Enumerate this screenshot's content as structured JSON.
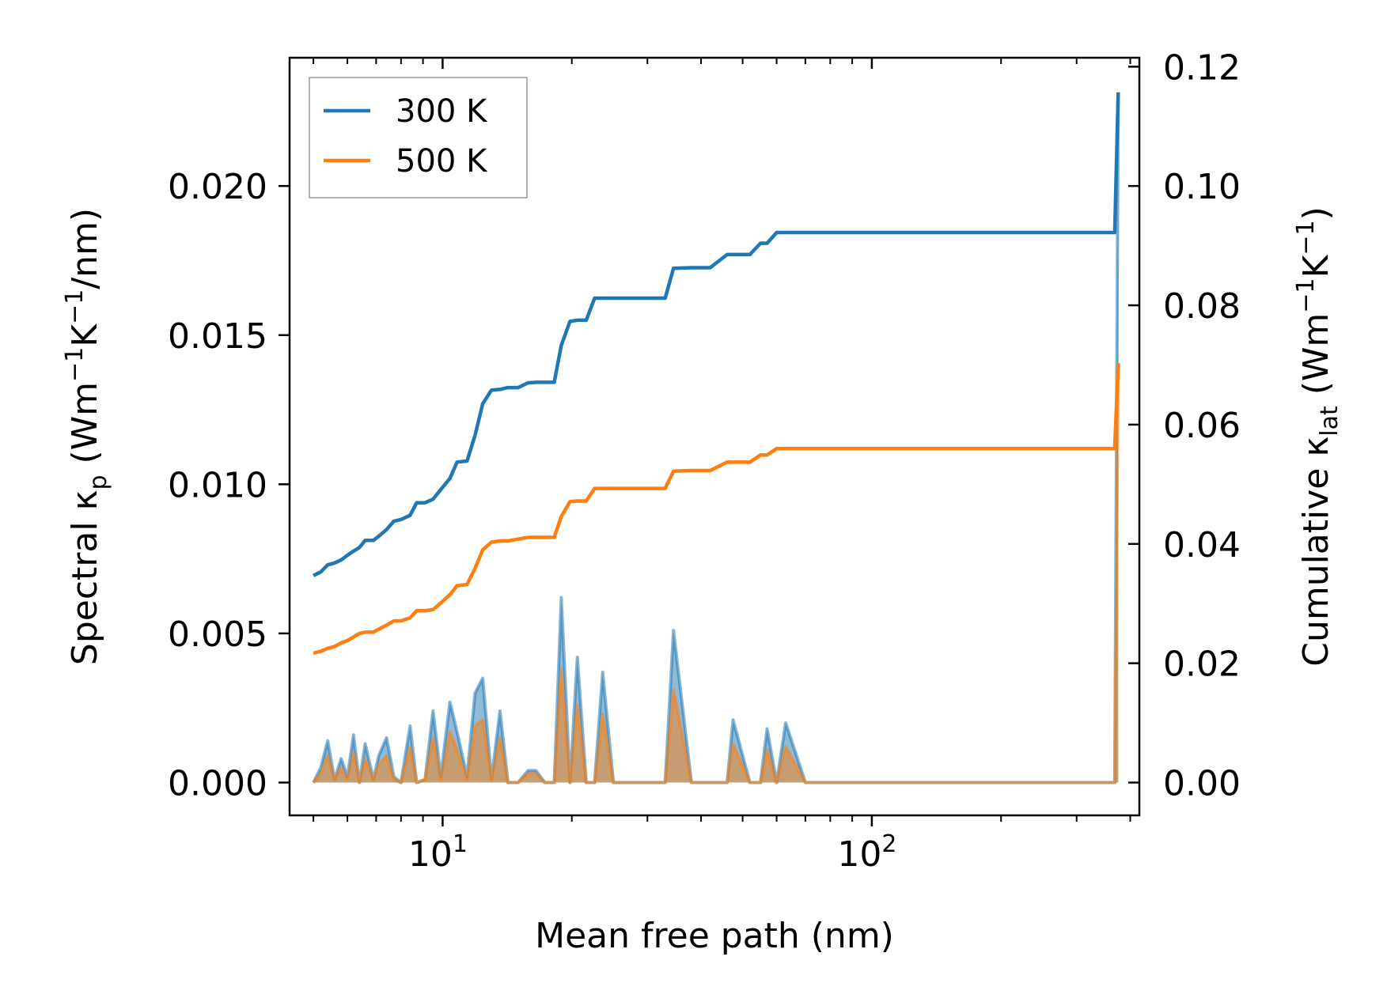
{
  "chart_data": {
    "type": "line",
    "xscale": "log",
    "xlabel": "Mean free path (nm)",
    "ylabel_left": {
      "prefix": "Spectral κ",
      "sub": "p",
      "mid": " (Wm",
      "sup1": "−1",
      "mid2": "K",
      "sup2": "−1",
      "suffix": "/nm)"
    },
    "ylabel_right": {
      "prefix": "Cumulative κ",
      "sub": "lat",
      "mid": " (Wm",
      "sup1": "−1",
      "mid2": "K",
      "sup2": "−1",
      "suffix": ")"
    },
    "xlim": [
      4.4,
      420
    ],
    "ylim_left": [
      -0.0011,
      0.0243
    ],
    "ylim_right": [
      -0.0055,
      0.1215
    ],
    "xticks": [
      {
        "base": "10",
        "exp": "1",
        "value": 10
      },
      {
        "base": "10",
        "exp": "2",
        "value": 100
      }
    ],
    "yticks_left": [
      "0.000",
      "0.005",
      "0.010",
      "0.015",
      "0.020"
    ],
    "yticks_left_values": [
      0,
      0.005,
      0.01,
      0.015,
      0.02
    ],
    "yticks_right": [
      "0.00",
      "0.02",
      "0.04",
      "0.06",
      "0.08",
      "0.10",
      "0.12"
    ],
    "yticks_right_values": [
      0,
      0.02,
      0.04,
      0.06,
      0.08,
      0.1,
      0.12
    ],
    "legend": {
      "position": "top-left",
      "entries": [
        "300 K",
        "500 K"
      ]
    },
    "colors": {
      "s300": "#1f77b4",
      "s500": "#ff7f0e"
    },
    "cumulative": [
      {
        "name": "300 K",
        "x": [
          5.0,
          5.2,
          5.4,
          5.6,
          5.8,
          6.0,
          6.2,
          6.4,
          6.6,
          6.9,
          7.1,
          7.4,
          7.7,
          8.0,
          8.4,
          8.7,
          9.1,
          9.5,
          9.9,
          10.4,
          10.8,
          11.4,
          11.9,
          12.4,
          13.0,
          13.6,
          14.2,
          15.0,
          15.8,
          16.5,
          17.3,
          18.2,
          18.9,
          19.8,
          20.6,
          21.6,
          22.6,
          23.6,
          25.0,
          27.0,
          29.0,
          31.0,
          33.0,
          34.5,
          38.0,
          42.0,
          46.0,
          47.5,
          52.0,
          55.0,
          57.0,
          60.0,
          63.0,
          70.0,
          100.0,
          200.0,
          368.0,
          375.0
        ],
        "y": [
          0.0347,
          0.0353,
          0.0365,
          0.0368,
          0.0373,
          0.0381,
          0.0388,
          0.0394,
          0.0406,
          0.0406,
          0.0413,
          0.0424,
          0.0438,
          0.0441,
          0.0448,
          0.0469,
          0.0469,
          0.0475,
          0.0491,
          0.051,
          0.0537,
          0.0539,
          0.0582,
          0.0635,
          0.0658,
          0.0659,
          0.0662,
          0.0662,
          0.067,
          0.0671,
          0.0671,
          0.0671,
          0.0733,
          0.0773,
          0.0775,
          0.0775,
          0.0812,
          0.0812,
          0.0812,
          0.0812,
          0.0812,
          0.0812,
          0.0812,
          0.0862,
          0.0863,
          0.0863,
          0.0885,
          0.0885,
          0.0885,
          0.0904,
          0.0904,
          0.0922,
          0.0922,
          0.0922,
          0.0922,
          0.0922,
          0.0922,
          0.1157
        ]
      },
      {
        "name": "500 K",
        "x": [
          5.0,
          5.2,
          5.4,
          5.6,
          5.8,
          6.0,
          6.2,
          6.4,
          6.6,
          6.9,
          7.1,
          7.4,
          7.7,
          8.0,
          8.4,
          8.7,
          9.1,
          9.5,
          9.9,
          10.4,
          10.8,
          11.4,
          11.9,
          12.4,
          13.0,
          13.6,
          14.2,
          15.0,
          15.8,
          16.5,
          17.3,
          18.2,
          18.9,
          19.8,
          20.6,
          21.6,
          22.6,
          23.6,
          25.0,
          27.0,
          29.0,
          31.0,
          33.0,
          34.5,
          38.0,
          42.0,
          46.0,
          47.5,
          52.0,
          55.0,
          57.0,
          60.0,
          63.0,
          70.0,
          100.0,
          200.0,
          368.0,
          375.0
        ],
        "y": [
          0.0217,
          0.022,
          0.0225,
          0.0228,
          0.0234,
          0.0238,
          0.0244,
          0.025,
          0.0252,
          0.0252,
          0.0257,
          0.0264,
          0.0271,
          0.0271,
          0.0276,
          0.0288,
          0.0288,
          0.029,
          0.0301,
          0.0315,
          0.033,
          0.0332,
          0.0359,
          0.039,
          0.0403,
          0.0405,
          0.0405,
          0.0408,
          0.0411,
          0.0411,
          0.0411,
          0.0411,
          0.0446,
          0.0471,
          0.0472,
          0.0472,
          0.0493,
          0.0493,
          0.0493,
          0.0493,
          0.0493,
          0.0493,
          0.0493,
          0.0522,
          0.0523,
          0.0523,
          0.0537,
          0.0537,
          0.0537,
          0.0549,
          0.0549,
          0.056,
          0.056,
          0.056,
          0.056,
          0.056,
          0.056,
          0.0703
        ]
      }
    ],
    "spectral": [
      {
        "name": "300 K",
        "x": [
          5.0,
          5.2,
          5.4,
          5.6,
          5.8,
          6.0,
          6.2,
          6.4,
          6.6,
          6.9,
          7.1,
          7.4,
          7.7,
          8.0,
          8.4,
          8.7,
          9.1,
          9.5,
          9.9,
          10.4,
          10.8,
          11.4,
          11.9,
          12.4,
          13.0,
          13.6,
          14.2,
          15.0,
          15.8,
          16.5,
          17.3,
          18.2,
          18.9,
          19.8,
          20.6,
          21.6,
          22.6,
          23.6,
          25.0,
          27.0,
          29.0,
          31.0,
          33.0,
          34.5,
          38.0,
          42.0,
          46.0,
          47.5,
          52.0,
          55.0,
          57.0,
          60.0,
          63.0,
          70.0,
          100.0,
          200.0,
          368.0,
          375.0
        ],
        "y": [
          0.0,
          0.0005,
          0.0014,
          0.0001,
          0.0008,
          0.0002,
          0.0016,
          0.0,
          0.0013,
          0.0001,
          0.0009,
          0.0015,
          0.0002,
          0.0,
          0.0019,
          0.0,
          0.0001,
          0.0024,
          0.0002,
          0.0027,
          0.0017,
          0.0002,
          0.003,
          0.0035,
          0.0001,
          0.0024,
          0.0,
          0.0,
          0.0004,
          0.0004,
          0.0,
          0.0,
          0.0062,
          0.0,
          0.0042,
          0.0,
          0.0,
          0.0037,
          0.0,
          0.0,
          0.0,
          0.0,
          0.0,
          0.0051,
          0.0,
          0.0,
          0.0,
          0.0021,
          0.0,
          0.0,
          0.0018,
          0.0,
          0.002,
          0.0,
          0.0,
          0.0,
          0.0,
          0.0231
        ]
      },
      {
        "name": "500 K",
        "x": [
          5.0,
          5.2,
          5.4,
          5.6,
          5.8,
          6.0,
          6.2,
          6.4,
          6.6,
          6.9,
          7.1,
          7.4,
          7.7,
          8.0,
          8.4,
          8.7,
          9.1,
          9.5,
          9.9,
          10.4,
          10.8,
          11.4,
          11.9,
          12.4,
          13.0,
          13.6,
          14.2,
          15.0,
          15.8,
          16.5,
          17.3,
          18.2,
          18.9,
          19.8,
          20.6,
          21.6,
          22.6,
          23.6,
          25.0,
          27.0,
          29.0,
          31.0,
          33.0,
          34.5,
          38.0,
          42.0,
          46.0,
          47.5,
          52.0,
          55.0,
          57.0,
          60.0,
          63.0,
          70.0,
          100.0,
          200.0,
          368.0,
          375.0
        ],
        "y": [
          0.0,
          0.0003,
          0.0009,
          0.0001,
          0.0005,
          0.0001,
          0.001,
          0.0,
          0.0008,
          0.0001,
          0.0006,
          0.0009,
          0.0001,
          0.0,
          0.0012,
          0.0,
          0.0001,
          0.0015,
          0.0001,
          0.0017,
          0.0011,
          0.0001,
          0.0019,
          0.0021,
          0.0001,
          0.0015,
          0.0,
          0.0,
          0.0003,
          0.0003,
          0.0,
          0.0,
          0.0038,
          0.0,
          0.0026,
          0.0,
          0.0,
          0.0023,
          0.0,
          0.0,
          0.0,
          0.0,
          0.0,
          0.0031,
          0.0,
          0.0,
          0.0,
          0.0013,
          0.0,
          0.0,
          0.0011,
          0.0,
          0.0012,
          0.0,
          0.0,
          0.0,
          0.0,
          0.014
        ]
      }
    ]
  }
}
